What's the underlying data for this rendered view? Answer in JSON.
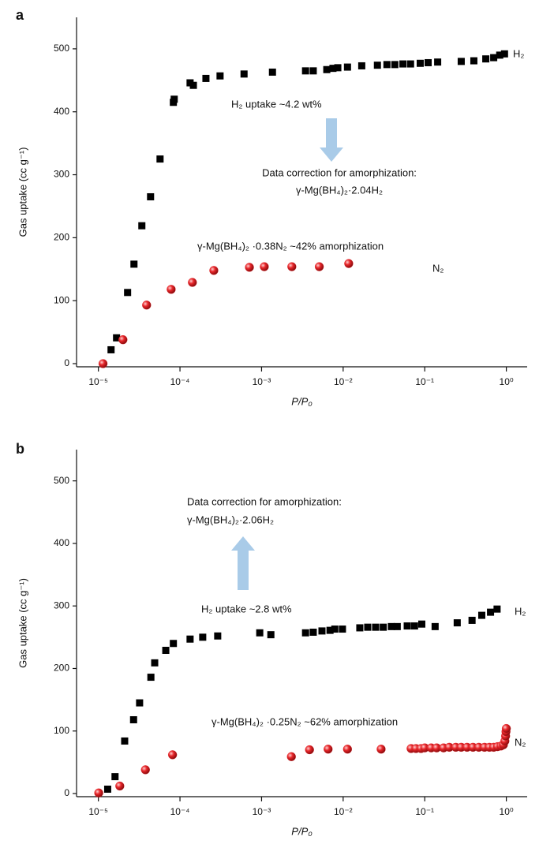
{
  "chart_data": [
    {
      "type": "scatter",
      "panel_label": "a",
      "xlabel": "P/P₀",
      "ylabel": "Gas uptake (cc g⁻¹)",
      "xscale": "log",
      "xlim": [
        5.4e-06,
        1.8
      ],
      "ylim": [
        -5,
        550
      ],
      "xticks": [
        {
          "value": 1e-05,
          "label": "10⁻⁵"
        },
        {
          "value": 0.0001,
          "label": "10⁻⁴"
        },
        {
          "value": 0.001,
          "label": "10⁻³"
        },
        {
          "value": 0.01,
          "label": "10⁻²"
        },
        {
          "value": 0.1,
          "label": "10⁻¹"
        },
        {
          "value": 1,
          "label": "10⁰"
        }
      ],
      "yticks": [
        0,
        100,
        200,
        300,
        400,
        500
      ],
      "series": [
        {
          "name": "H₂",
          "color": "#000000",
          "marker": "square",
          "x": [
            1.43e-05,
            1.67e-05,
            2.28e-05,
            2.73e-05,
            3.41e-05,
            4.36e-05,
            5.7e-05,
            8.3e-05,
            8.5e-05,
            0.000133,
            0.000146,
            0.000208,
            0.00031,
            0.00061,
            0.00136,
            0.00346,
            0.0043,
            0.0063,
            0.0075,
            0.0086,
            0.0113,
            0.0169,
            0.0263,
            0.0344,
            0.043,
            0.054,
            0.067,
            0.088,
            0.11,
            0.144,
            0.28,
            0.4,
            0.56,
            0.7,
            0.83,
            0.95
          ],
          "values": [
            22,
            41,
            113,
            158,
            219,
            265,
            325,
            415,
            420,
            446,
            442,
            453,
            457,
            460,
            463,
            465,
            465,
            467,
            469,
            470,
            471,
            473,
            474,
            475,
            475,
            476,
            476,
            477,
            478,
            479,
            480,
            481,
            484,
            486,
            490,
            492
          ]
        },
        {
          "name": "N₂",
          "color": "#e8262a",
          "marker": "sphere",
          "x": [
            1.14e-05,
            2e-05,
            3.9e-05,
            7.8e-05,
            0.000142,
            0.00026,
            0.00071,
            0.00108,
            0.00235,
            0.0051,
            0.0117
          ],
          "values": [
            0,
            38,
            93,
            118,
            129,
            148,
            153,
            154,
            154,
            154,
            159
          ]
        }
      ],
      "annotations": [
        {
          "text": "H₂ uptake ~4.2 wt%",
          "color": "#111111"
        },
        {
          "text": "Data correction for amorphization:",
          "color": "#2323d9"
        },
        {
          "text": "γ-Mg(BH₄)₂·2.04H₂",
          "color": "#2323d9"
        },
        {
          "text": "γ-Mg(BH₄)₂ ·0.38N₂ ~42% amorphization",
          "color": "#e8262a"
        }
      ]
    },
    {
      "type": "scatter",
      "panel_label": "b",
      "xlabel": "P/P₀",
      "ylabel": "Gas uptake (cc g⁻¹)",
      "xscale": "log",
      "xlim": [
        5.4e-06,
        1.8
      ],
      "ylim": [
        -5,
        550
      ],
      "xticks": [
        {
          "value": 1e-05,
          "label": "10⁻⁵"
        },
        {
          "value": 0.0001,
          "label": "10⁻⁴"
        },
        {
          "value": 0.001,
          "label": "10⁻³"
        },
        {
          "value": 0.01,
          "label": "10⁻²"
        },
        {
          "value": 0.1,
          "label": "10⁻¹"
        },
        {
          "value": 1,
          "label": "10⁰"
        }
      ],
      "yticks": [
        0,
        100,
        200,
        300,
        400,
        500
      ],
      "series": [
        {
          "name": "H₂",
          "color": "#000000",
          "marker": "square",
          "x": [
            1.3e-05,
            1.6e-05,
            2.1e-05,
            2.7e-05,
            3.2e-05,
            4.4e-05,
            4.9e-05,
            6.7e-05,
            8.3e-05,
            0.000133,
            0.00019,
            0.00029,
            0.00095,
            0.0013,
            0.00346,
            0.0043,
            0.0055,
            0.0069,
            0.0079,
            0.0098,
            0.016,
            0.02,
            0.025,
            0.031,
            0.039,
            0.046,
            0.061,
            0.075,
            0.092,
            0.134,
            0.25,
            0.38,
            0.5,
            0.64,
            0.77
          ],
          "values": [
            7,
            27,
            84,
            118,
            145,
            186,
            209,
            229,
            240,
            247,
            250,
            252,
            257,
            254,
            257,
            258,
            260,
            261,
            263,
            263,
            265,
            266,
            266,
            266,
            267,
            267,
            268,
            268,
            271,
            267,
            273,
            277,
            285,
            290,
            295
          ]
        },
        {
          "name": "N₂",
          "color": "#e8262a",
          "marker": "sphere",
          "x": [
            1.01e-05,
            1.83e-05,
            3.77e-05,
            8.11e-05,
            0.00232,
            0.00387,
            0.00654,
            0.0113,
            0.0292,
            0.068,
            0.078,
            0.09,
            0.1,
            0.12,
            0.14,
            0.17,
            0.2,
            0.24,
            0.28,
            0.33,
            0.39,
            0.46,
            0.54,
            0.62,
            0.7,
            0.78,
            0.86,
            0.92,
            0.96,
            0.98,
            0.99,
            1.0
          ],
          "values": [
            1,
            12,
            38,
            62,
            59,
            70,
            71,
            71,
            71,
            72,
            72,
            72,
            73,
            73,
            73,
            73,
            74,
            74,
            74,
            74,
            74,
            74,
            74,
            74,
            74,
            75,
            76,
            78,
            84,
            92,
            99,
            104
          ]
        }
      ],
      "annotations": [
        {
          "text": "Data correction for amorphization:",
          "color": "#2323d9"
        },
        {
          "text": "γ-Mg(BH₄)₂·2.06H₂",
          "color": "#2323d9"
        },
        {
          "text": "H₂ uptake ~2.8 wt%",
          "color": "#111111"
        },
        {
          "text": "γ-Mg(BH₄)₂ ·0.25N₂ ~62% amorphization",
          "color": "#e8262a"
        }
      ]
    }
  ]
}
